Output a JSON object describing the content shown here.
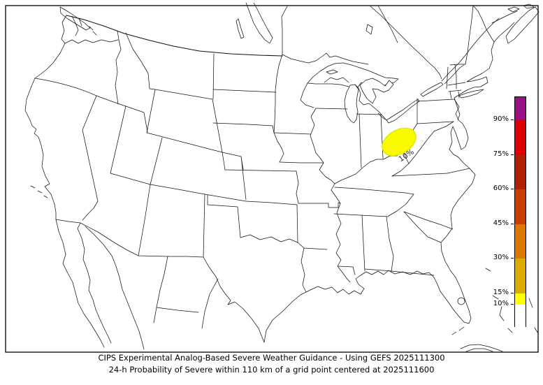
{
  "page": {
    "background_color": "#ffffff",
    "frame_color": "#000000"
  },
  "title": {
    "line1": "CIPS Experimental Analog-Based Severe Weather Guidance - Using GEFS 2025111300",
    "line2": "24-h Probability of Severe within 110 km of a grid point centered at 2025111600"
  },
  "map": {
    "description": "Continental United States basemap with state borders, Great Lakes, southern Canada, northern Mexico, Cuba and Bahamas",
    "contour_label": "10%",
    "contour_fill_color": "#f9f900",
    "contour_outline_color": "#e2e200",
    "line_color": "#141414"
  },
  "colorbar": {
    "orientation": "vertical",
    "tick_labels": [
      "90%",
      "75%",
      "60%",
      "45%",
      "30%",
      "15%",
      "10%"
    ],
    "ticks_pct": [
      90,
      75,
      60,
      45,
      30,
      15,
      10
    ],
    "segments": [
      {
        "from_pct": 90,
        "to_pct": 100,
        "color": "#9a1187"
      },
      {
        "from_pct": 75,
        "to_pct": 90,
        "color": "#dc0000"
      },
      {
        "from_pct": 60,
        "to_pct": 75,
        "color": "#b22000"
      },
      {
        "from_pct": 45,
        "to_pct": 60,
        "color": "#cc3d00"
      },
      {
        "from_pct": 30,
        "to_pct": 45,
        "color": "#dd7700"
      },
      {
        "from_pct": 15,
        "to_pct": 30,
        "color": "#ddaa00"
      },
      {
        "from_pct": 10,
        "to_pct": 15,
        "color": "#ffff00"
      },
      {
        "from_pct": 0,
        "to_pct": 10,
        "color": "#ffffff"
      }
    ]
  },
  "chart_data": {
    "type": "filled_contour_map",
    "title": "CIPS Experimental Analog-Based Severe Weather Guidance - Using GEFS 2025111300",
    "subtitle": "24-h Probability of Severe within 110 km of a grid point centered at 2025111600",
    "variable": "24-h probability of severe weather within 110 km of a grid point (%)",
    "model": "GEFS",
    "init_time": "2025111300",
    "valid_time": "2025111600",
    "region": "Continental United States",
    "projection": "Lambert conformal",
    "colorbar_ticks": [
      "10%",
      "15%",
      "30%",
      "45%",
      "60%",
      "75%",
      "90%"
    ],
    "levels_pct": [
      10,
      15,
      30,
      45,
      60,
      75,
      90
    ],
    "level_colors": [
      "#ffff00",
      "#ddaa00",
      "#dd7700",
      "#cc3d00",
      "#b22000",
      "#dc0000",
      "#9a1187"
    ],
    "contour_regions": [
      {
        "value": "10%",
        "label": "10%",
        "approx_location": "Ohio / middle Ohio Valley",
        "fill_color": "#ffff00"
      }
    ],
    "legend_position": "inset right",
    "grid": false
  }
}
